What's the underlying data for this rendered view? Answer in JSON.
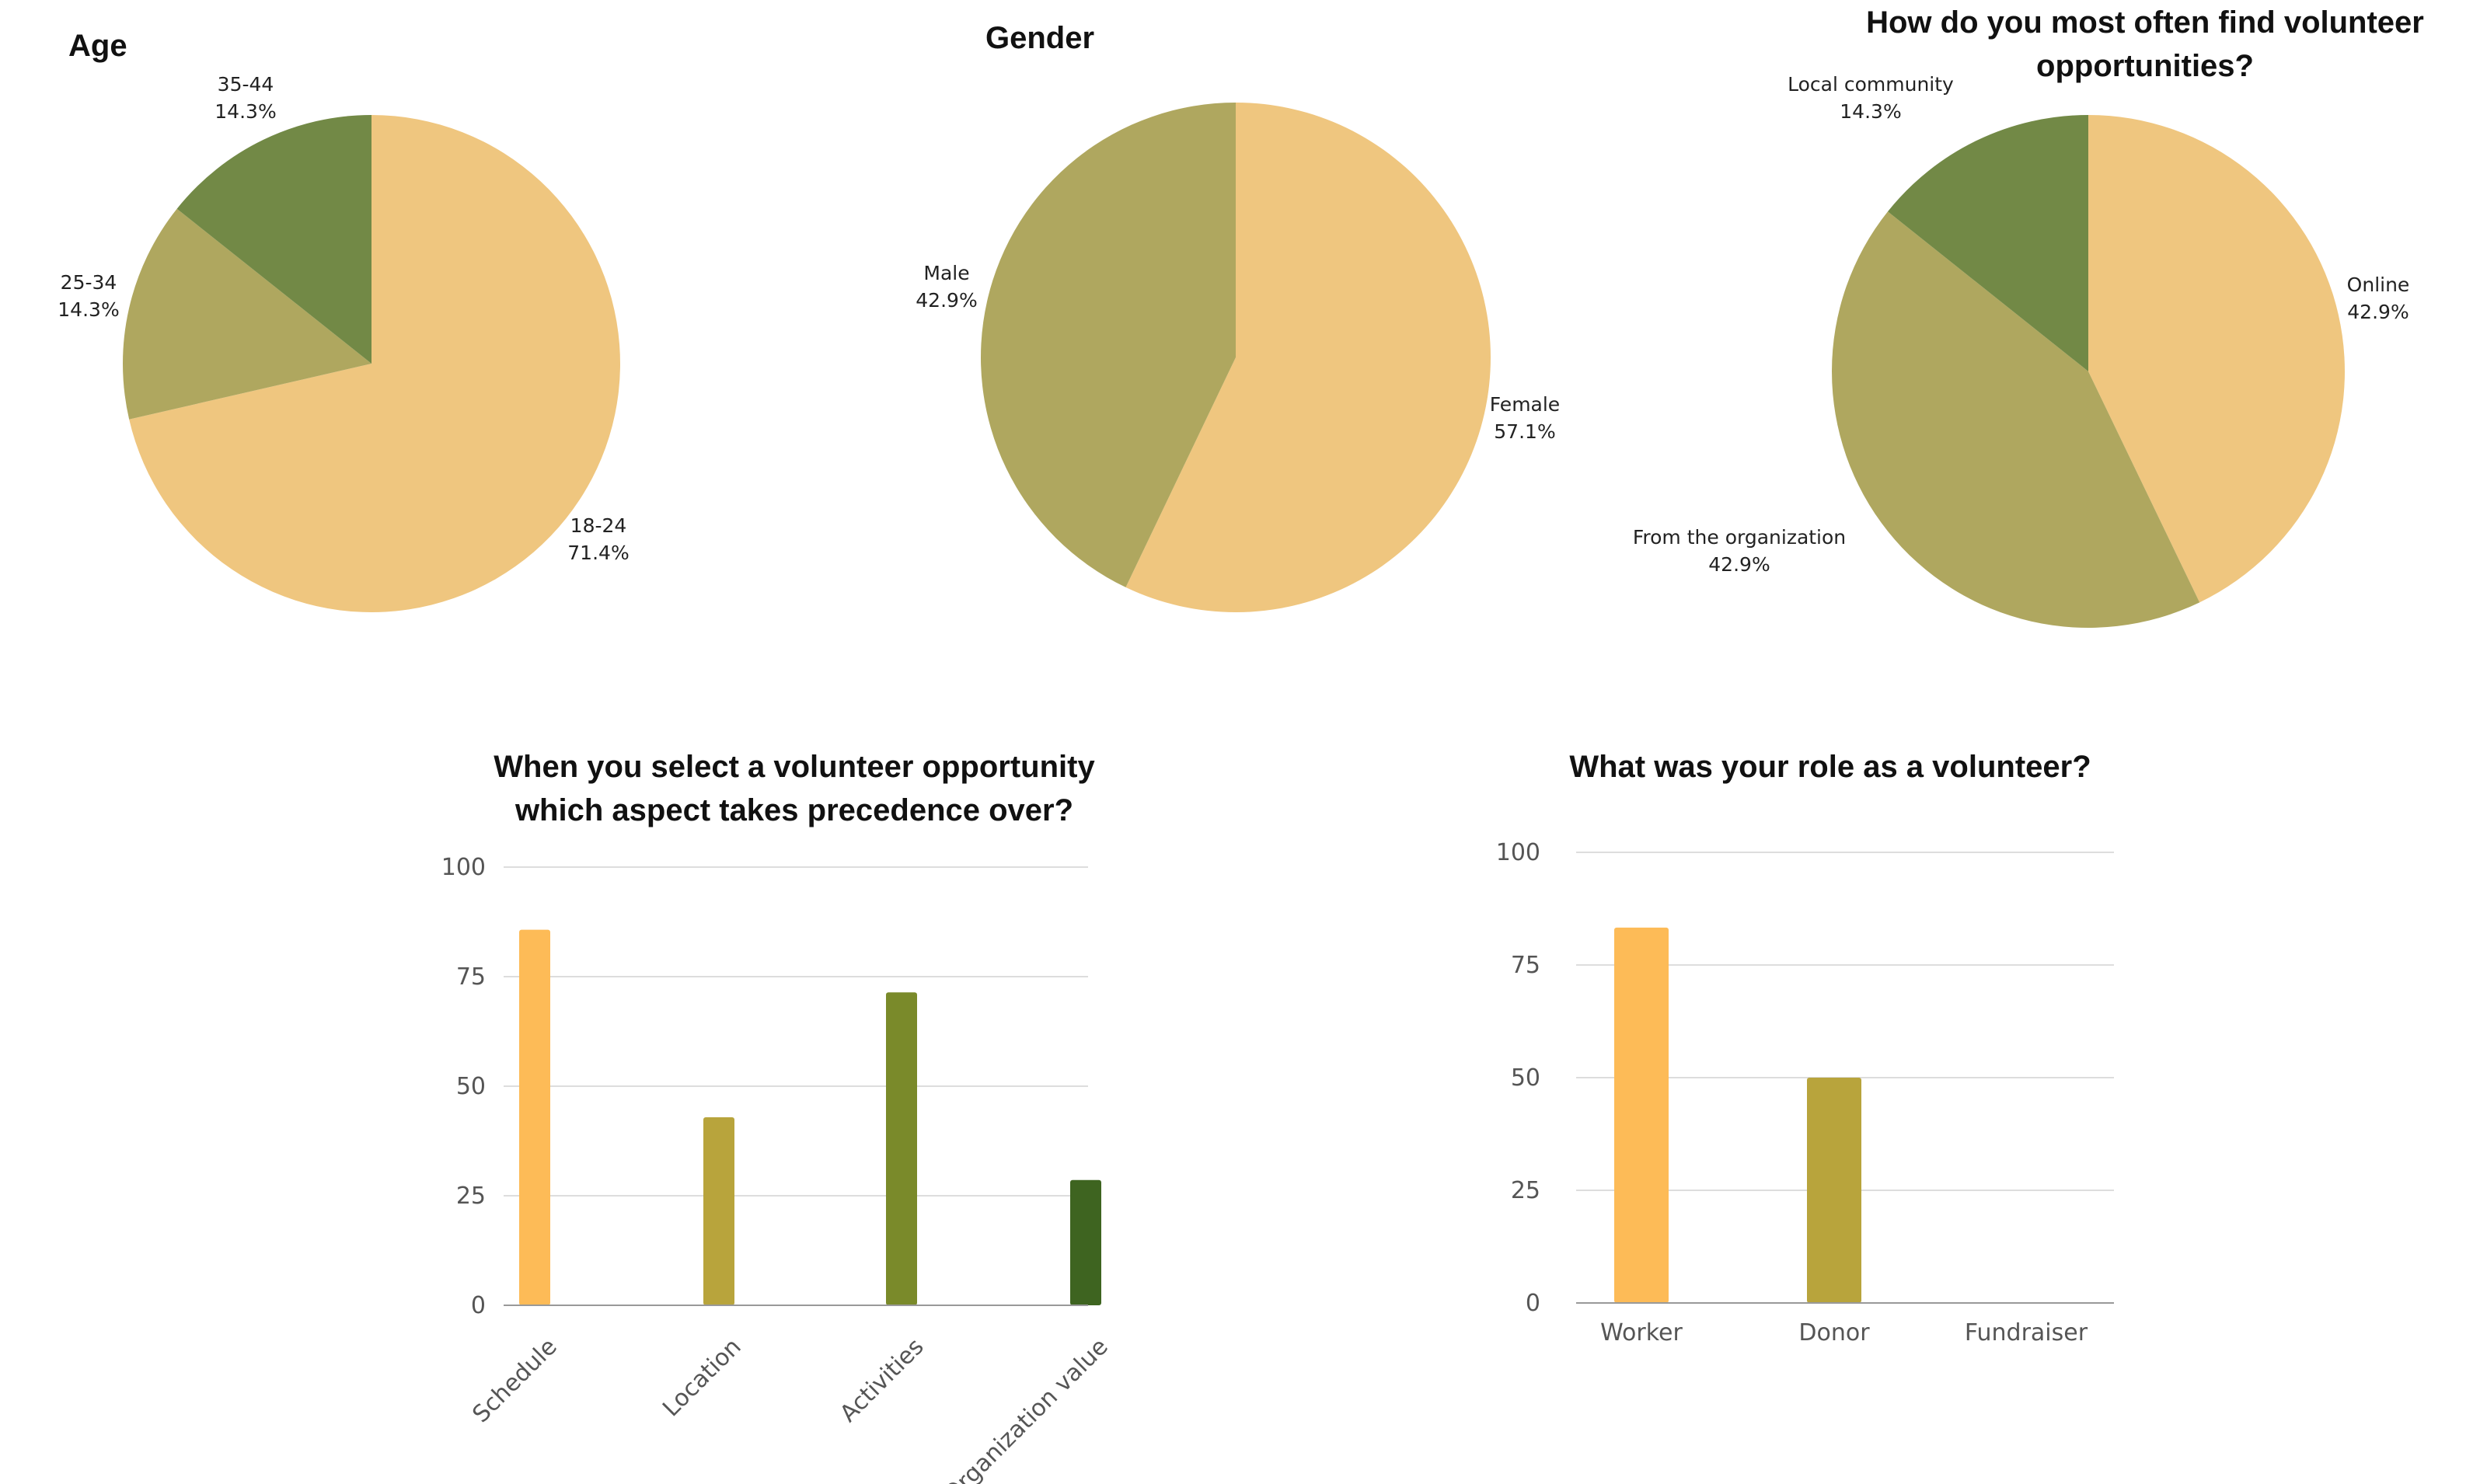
{
  "chart_data": [
    {
      "id": "age",
      "type": "pie",
      "title": "Age",
      "slices": [
        {
          "label": "18-24",
          "pct_text": "71.4%",
          "value": 71.4,
          "color": "#EFC67F"
        },
        {
          "label": "25-34",
          "pct_text": "14.3%",
          "value": 14.3,
          "color": "#AFA75F"
        },
        {
          "label": "35-44",
          "pct_text": "14.3%",
          "value": 14.3,
          "color": "#728946"
        }
      ]
    },
    {
      "id": "gender",
      "type": "pie",
      "title": "Gender",
      "slices": [
        {
          "label": "Female",
          "pct_text": "57.1%",
          "value": 57.1,
          "color": "#EFC67F"
        },
        {
          "label": "Male",
          "pct_text": "42.9%",
          "value": 42.9,
          "color": "#AFA75F"
        }
      ]
    },
    {
      "id": "find",
      "type": "pie",
      "title": "How do you most often find volunteer opportunities?",
      "title_lines": [
        "How do you most often find volunteer",
        "opportunities?"
      ],
      "slices": [
        {
          "label": "Online",
          "pct_text": "42.9%",
          "value": 42.9,
          "color": "#EFC67F"
        },
        {
          "label": "From the organization",
          "pct_text": "42.9%",
          "value": 42.9,
          "color": "#AFA75F"
        },
        {
          "label": "Local community",
          "pct_text": "14.3%",
          "value": 14.3,
          "color": "#728946"
        }
      ]
    },
    {
      "id": "aspect",
      "type": "bar",
      "title": "When you select a volunteer opportunity which aspect takes precedence over?",
      "title_lines": [
        "When you select a volunteer opportunity",
        "which aspect takes precedence over?"
      ],
      "categories": [
        "Schedule",
        "Location",
        "Activities",
        "Organization value"
      ],
      "values": [
        85.7,
        42.9,
        71.4,
        28.6
      ],
      "colors": [
        "#FDBB57",
        "#B8A43C",
        "#7A8A2A",
        "#3E6420"
      ],
      "ylim": [
        0,
        100
      ],
      "yticks": [
        0,
        25,
        50,
        75,
        100
      ],
      "rotated_labels": true
    },
    {
      "id": "role",
      "type": "bar",
      "title": "What was your role as a volunteer?",
      "title_lines": [
        "What was your role as a volunteer?"
      ],
      "categories": [
        "Worker",
        "Donor",
        "Fundraiser"
      ],
      "values": [
        83.3,
        50,
        0
      ],
      "colors": [
        "#FDBB57",
        "#B8A43C",
        "#7A8A2A"
      ],
      "ylim": [
        0,
        100
      ],
      "yticks": [
        0,
        25,
        50,
        75,
        100
      ],
      "rotated_labels": false
    }
  ]
}
